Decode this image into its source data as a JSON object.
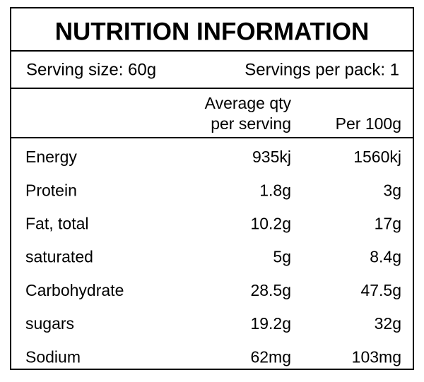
{
  "title": "NUTRITION INFORMATION",
  "serving": {
    "size": "Serving size: 60g",
    "per_pack": "Servings per pack: 1"
  },
  "table": {
    "header": [
      [
        "Average qty",
        "per serving"
      ],
      [
        "Per 100g"
      ]
    ],
    "rows": [
      [
        "Energy",
        "935kj",
        "1560kj"
      ],
      [
        "Protein",
        "1.8g",
        "3g"
      ],
      [
        "Fat, total",
        "10.2g",
        "17g"
      ],
      [
        "saturated",
        "5g",
        "8.4g"
      ],
      [
        "Carbohydrate",
        "28.5g",
        "47.5g"
      ],
      [
        "sugars",
        "19.2g",
        "32g"
      ],
      [
        "Sodium",
        "62mg",
        "103mg"
      ]
    ]
  }
}
